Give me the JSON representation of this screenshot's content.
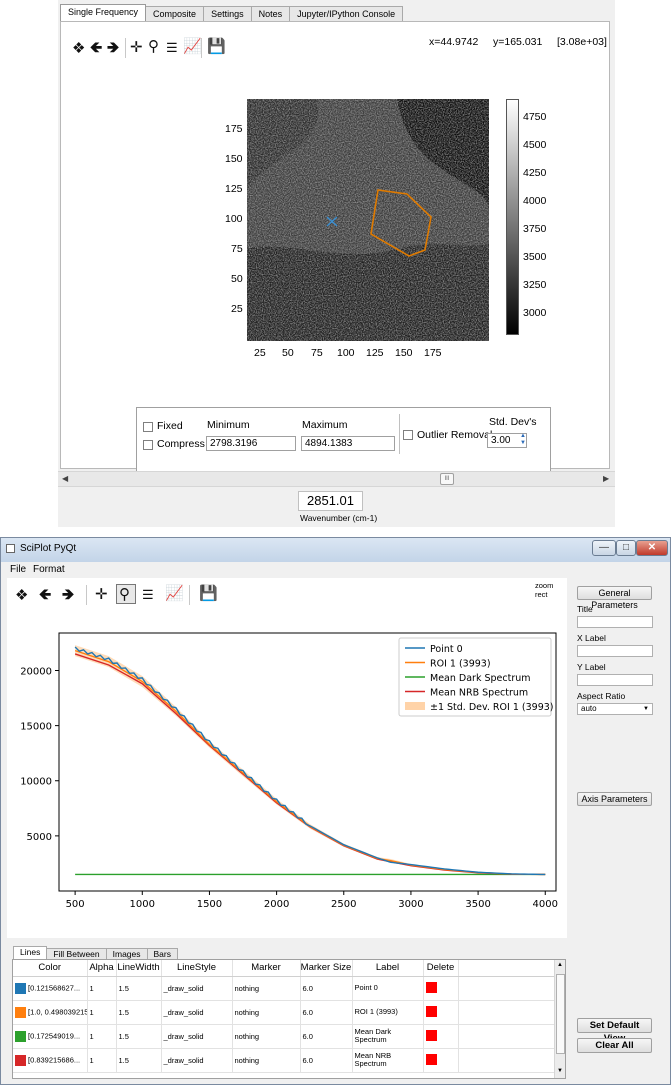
{
  "top": {
    "tabs": [
      "Single Frequency",
      "Composite",
      "Settings",
      "Notes",
      "Jupyter/IPython Console"
    ],
    "toolbar_icons": [
      "home-icon",
      "back-arrow-icon",
      "forward-arrow-icon",
      "pan-icon",
      "zoom-icon",
      "configure-subplots-icon",
      "edit-axis-icon",
      "save-icon"
    ],
    "coords": {
      "x": "x=44.9742",
      "y": "y=165.031",
      "val": "[3.08e+03]"
    },
    "image": {
      "y_ticks": [
        "175",
        "150",
        "125",
        "100",
        "75",
        "50",
        "25"
      ],
      "x_ticks": [
        "25",
        "50",
        "75",
        "100",
        "125",
        "150",
        "175"
      ],
      "colorbar_ticks": [
        "4750",
        "4500",
        "4250",
        "4000",
        "3750",
        "3500",
        "3250",
        "3000"
      ],
      "roi_color": "#e07b00",
      "point_color": "#3a8ed0"
    },
    "controls": {
      "fixed_label": "Fixed",
      "compress_label": "Compress",
      "min_label": "Minimum",
      "max_label": "Maximum",
      "min_value": "2798.3196",
      "max_value": "4894.1383",
      "outlier_label": "Outlier Removal",
      "stddev_label": "Std. Dev's",
      "stddev_value": "3.00"
    },
    "wavenumber": {
      "value": "2851.01",
      "label": "Wavenumber (cm-1)"
    },
    "scroll_thumb": "III"
  },
  "bottom": {
    "title": "SciPlot PyQt",
    "menu": [
      "File",
      "Format"
    ],
    "toolbar_icons": [
      "home-icon",
      "back-arrow-icon",
      "forward-arrow-icon",
      "pan-icon",
      "zoom-icon",
      "configure-subplots-icon",
      "edit-axis-icon",
      "save-icon"
    ],
    "zoom_mode": "zoom rect",
    "side": {
      "general_btn": "General Parameters",
      "title_label": "Title",
      "xlabel_label": "X Label",
      "ylabel_label": "Y Label",
      "aspect_label": "Aspect Ratio",
      "aspect_value": "auto",
      "axis_btn": "Axis Parameters",
      "default_btn": "Set Default View",
      "clear_btn": "Clear All"
    },
    "tabs": [
      "Lines",
      "Fill Between",
      "Images",
      "Bars"
    ],
    "table": {
      "headers": [
        "Color",
        "Alpha",
        "LineWidth",
        "LineStyle",
        "Marker",
        "Marker Size",
        "Label",
        "Delete"
      ],
      "rows": [
        {
          "swatch": "#1f77b4",
          "color": "[0.121568627...",
          "alpha": "1",
          "lw": "1.5",
          "ls": "_draw_solid",
          "marker": "nothing",
          "ms": "6.0",
          "label": "Point 0"
        },
        {
          "swatch": "#ff7f0e",
          "color": "[1.0, 0.498039215...",
          "alpha": "1",
          "lw": "1.5",
          "ls": "_draw_solid",
          "marker": "nothing",
          "ms": "6.0",
          "label": "ROI 1 (3993)"
        },
        {
          "swatch": "#2ca02c",
          "color": "[0.172549019...",
          "alpha": "1",
          "lw": "1.5",
          "ls": "_draw_solid",
          "marker": "nothing",
          "ms": "6.0",
          "label": "Mean Dark Spectrum"
        },
        {
          "swatch": "#d62728",
          "color": "[0.839215686...",
          "alpha": "1",
          "lw": "1.5",
          "ls": "_draw_solid",
          "marker": "nothing",
          "ms": "6.0",
          "label": "Mean NRB Spectrum"
        }
      ]
    }
  },
  "chart_data": {
    "type": "line",
    "title": "",
    "xlabel": "",
    "ylabel": "",
    "xlim": [
      380,
      4080
    ],
    "ylim": [
      0,
      23400
    ],
    "x_ticks": [
      500,
      1000,
      1500,
      2000,
      2500,
      3000,
      3500,
      4000
    ],
    "y_ticks": [
      5000,
      10000,
      15000,
      20000
    ],
    "grid": false,
    "legend_position": "top-right",
    "legend": [
      "Point 0",
      "ROI 1 (3993)",
      "Mean Dark Spectrum",
      "Mean NRB Spectrum",
      "±1 Std. Dev. ROI 1 (3993)"
    ],
    "x": [
      500,
      750,
      1000,
      1250,
      1500,
      1750,
      2000,
      2250,
      2500,
      2750,
      2850,
      3000,
      3250,
      3500,
      3750,
      4000
    ],
    "series": [
      {
        "name": "Point 0",
        "color": "#1f77b4",
        "values": [
          22000,
          21000,
          19200,
          16500,
          13500,
          10800,
          8200,
          5900,
          4200,
          3000,
          2600,
          2400,
          2000,
          1700,
          1550,
          1500
        ]
      },
      {
        "name": "ROI 1 (3993)",
        "color": "#ff7f0e",
        "values": [
          21800,
          20800,
          19000,
          16300,
          13300,
          10700,
          8100,
          5850,
          4150,
          2950,
          2750,
          2350,
          1950,
          1680,
          1540,
          1500
        ]
      },
      {
        "name": "Mean Dark Spectrum",
        "color": "#2ca02c",
        "values": [
          1500,
          1500,
          1500,
          1500,
          1500,
          1500,
          1500,
          1500,
          1500,
          1500,
          1500,
          1500,
          1500,
          1500,
          1500,
          1500
        ]
      },
      {
        "name": "Mean NRB Spectrum",
        "color": "#d62728",
        "values": [
          21500,
          20500,
          18800,
          16100,
          13200,
          10600,
          8000,
          5800,
          4100,
          2900,
          2650,
          2300,
          1900,
          1650,
          1530,
          1500
        ]
      }
    ],
    "band": {
      "name": "±1 Std. Dev. ROI 1 (3993)",
      "color": "#ffd3a8",
      "lower": [
        21300,
        20300,
        18500,
        15900,
        13000,
        10400,
        7850,
        5650,
        4000,
        2820,
        2600,
        2250,
        1880,
        1630,
        1520,
        1490
      ],
      "upper": [
        22300,
        21300,
        19500,
        16700,
        13600,
        11000,
        8350,
        6050,
        4300,
        3080,
        2900,
        2450,
        2020,
        1730,
        1560,
        1510
      ]
    }
  }
}
